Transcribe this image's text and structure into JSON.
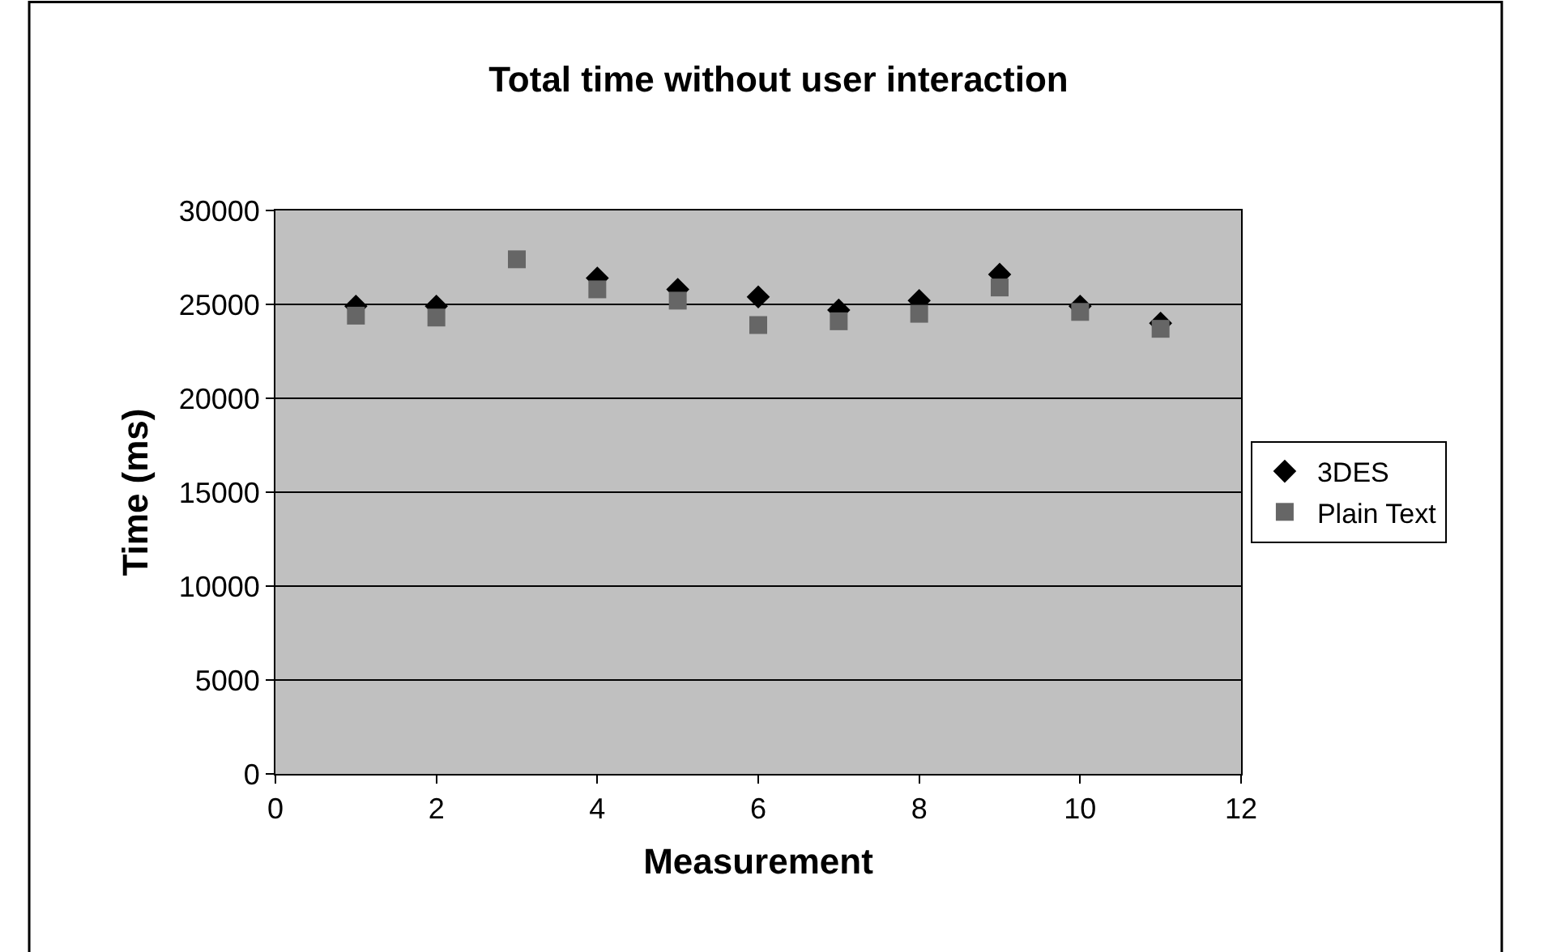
{
  "chart_data": {
    "type": "scatter",
    "title": "Total time without user interaction",
    "xlabel": "Measurement",
    "ylabel": "Time (ms)",
    "x": [
      1,
      2,
      3,
      4,
      5,
      6,
      7,
      8,
      9,
      10,
      11
    ],
    "series": [
      {
        "name": "3DES",
        "color": "#000000",
        "marker": "diamond",
        "values": [
          24900,
          24900,
          null,
          26400,
          25800,
          25400,
          24700,
          25200,
          26600,
          24900,
          24000
        ]
      },
      {
        "name": "Plain Text",
        "color": "#666666",
        "marker": "square",
        "values": [
          24400,
          24300,
          27400,
          25800,
          25200,
          23900,
          24100,
          24500,
          25900,
          24600,
          23700
        ]
      }
    ],
    "xlim": [
      0,
      12
    ],
    "xticks": [
      0,
      2,
      4,
      6,
      8,
      10,
      12
    ],
    "ylim": [
      0,
      30000
    ],
    "yticks": [
      0,
      5000,
      10000,
      15000,
      20000,
      25000,
      30000
    ],
    "grid": "y",
    "legend": "right"
  }
}
